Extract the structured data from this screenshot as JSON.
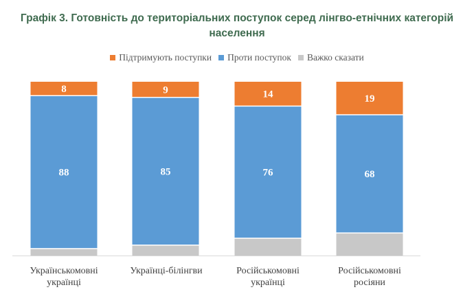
{
  "chart_data": {
    "type": "bar",
    "stacked": true,
    "title_lines": [
      "Графік 3. Готовність до територіальних поступок серед лінгво-етнічних категорій",
      "населення"
    ],
    "categories": [
      [
        "Українськомовні",
        "українці"
      ],
      [
        "Українці-білінгви"
      ],
      [
        "Російськомовні",
        "українці"
      ],
      [
        "Російськомовні",
        "росіяни"
      ]
    ],
    "series": [
      {
        "name": "Підтримують поступки",
        "color": "#ed7d31",
        "values": [
          8,
          9,
          14,
          19
        ],
        "labels": [
          "8",
          "9",
          "14",
          "19"
        ]
      },
      {
        "name": "Проти поступок",
        "color": "#5b9bd5",
        "values": [
          88,
          85,
          76,
          68
        ],
        "labels": [
          "88",
          "85",
          "76",
          "68"
        ]
      },
      {
        "name": "Важко сказати",
        "color": "#c8c8c8",
        "values": [
          4,
          6,
          10,
          13
        ],
        "labels": [
          "",
          "",
          "",
          ""
        ]
      }
    ],
    "ylim": [
      0,
      100
    ],
    "legend_position": "top"
  }
}
